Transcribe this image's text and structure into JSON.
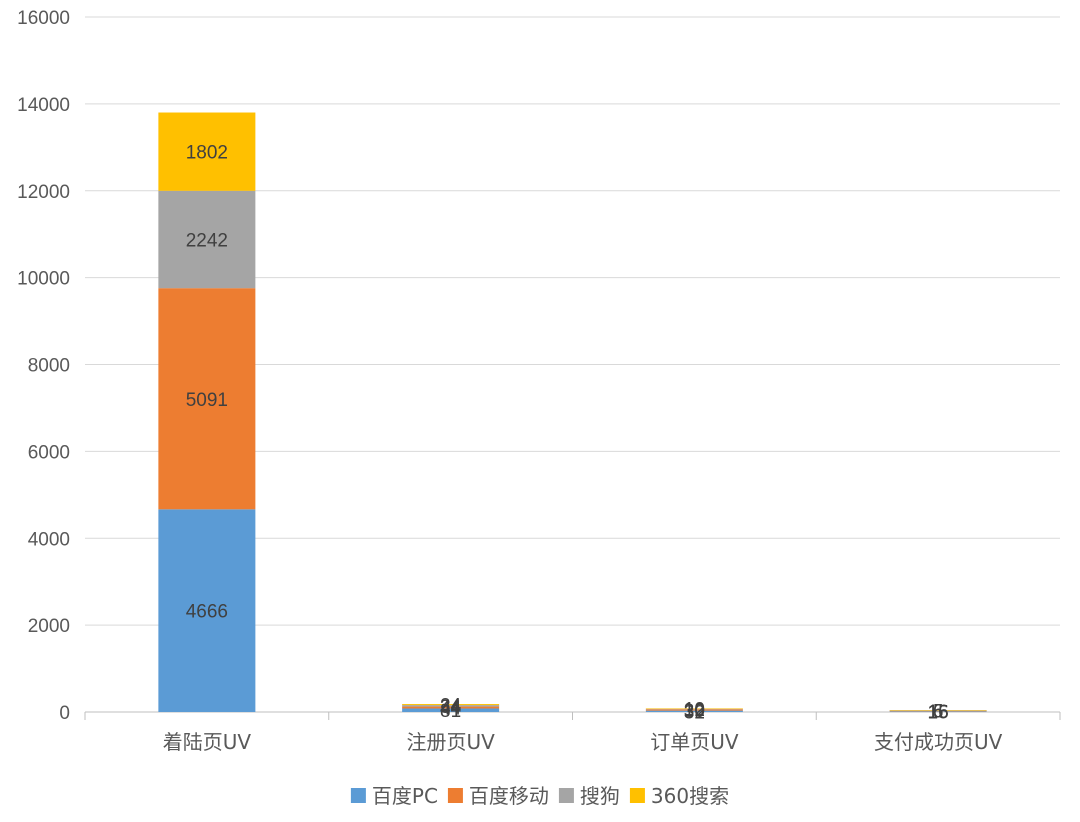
{
  "chart_data": {
    "type": "bar",
    "stacked": true,
    "categories": [
      "着陆页UV",
      "注册页UV",
      "订单页UV",
      "支付成功页UV"
    ],
    "series": [
      {
        "name": "百度PC",
        "color": "#5B9BD5",
        "values": [
          4666,
          81,
          32,
          15
        ]
      },
      {
        "name": "百度移动",
        "color": "#ED7D31",
        "values": [
          5091,
          44,
          30,
          16
        ]
      },
      {
        "name": "搜狗",
        "color": "#A5A5A5",
        "values": [
          2242,
          34,
          12,
          6
        ]
      },
      {
        "name": "360搜索",
        "color": "#FFC000",
        "values": [
          1802,
          24,
          10,
          5
        ]
      }
    ],
    "ylim": [
      0,
      16000
    ],
    "yticks": [
      0,
      2000,
      4000,
      6000,
      8000,
      10000,
      12000,
      14000,
      16000
    ],
    "grid": true,
    "legend": "bottom",
    "xlabel": "",
    "ylabel": "",
    "title": ""
  }
}
